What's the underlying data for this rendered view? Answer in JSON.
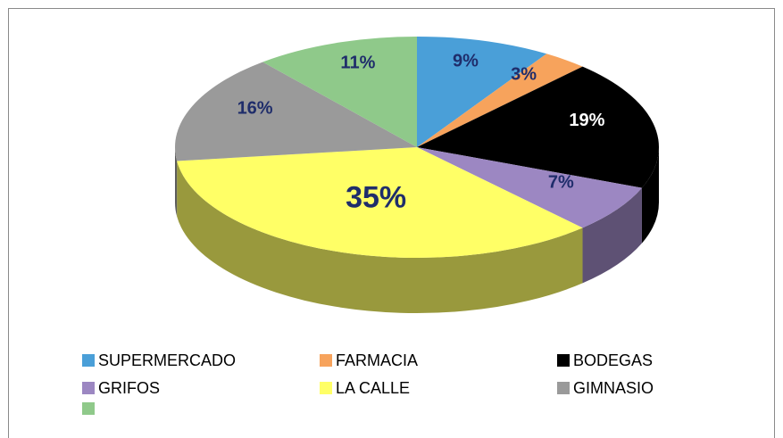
{
  "chart_data": {
    "type": "pie3d",
    "categories": [
      "SUPERMERCADO",
      "FARMACIA",
      "BODEGAS",
      "GRIFOS",
      "LA CALLE",
      "GIMNASIO",
      null
    ],
    "values": [
      9,
      3,
      19,
      7,
      35,
      16,
      11
    ],
    "value_labels": [
      "9%",
      "3%",
      "19%",
      "7%",
      "35%",
      "16%",
      "11%"
    ],
    "colors": [
      "#4a9fd8",
      "#f7a35c",
      "#000000",
      "#9c87c2",
      "#ffff66",
      "#9a9a9a",
      "#8fc98a"
    ],
    "label_colors": [
      "#1f2d6b",
      "#1f2d6b",
      "#ffffff",
      "#1f2d6b",
      "#1f2d6b",
      "#1f2d6b",
      "#1f2d6b"
    ],
    "legend": "bottom"
  }
}
